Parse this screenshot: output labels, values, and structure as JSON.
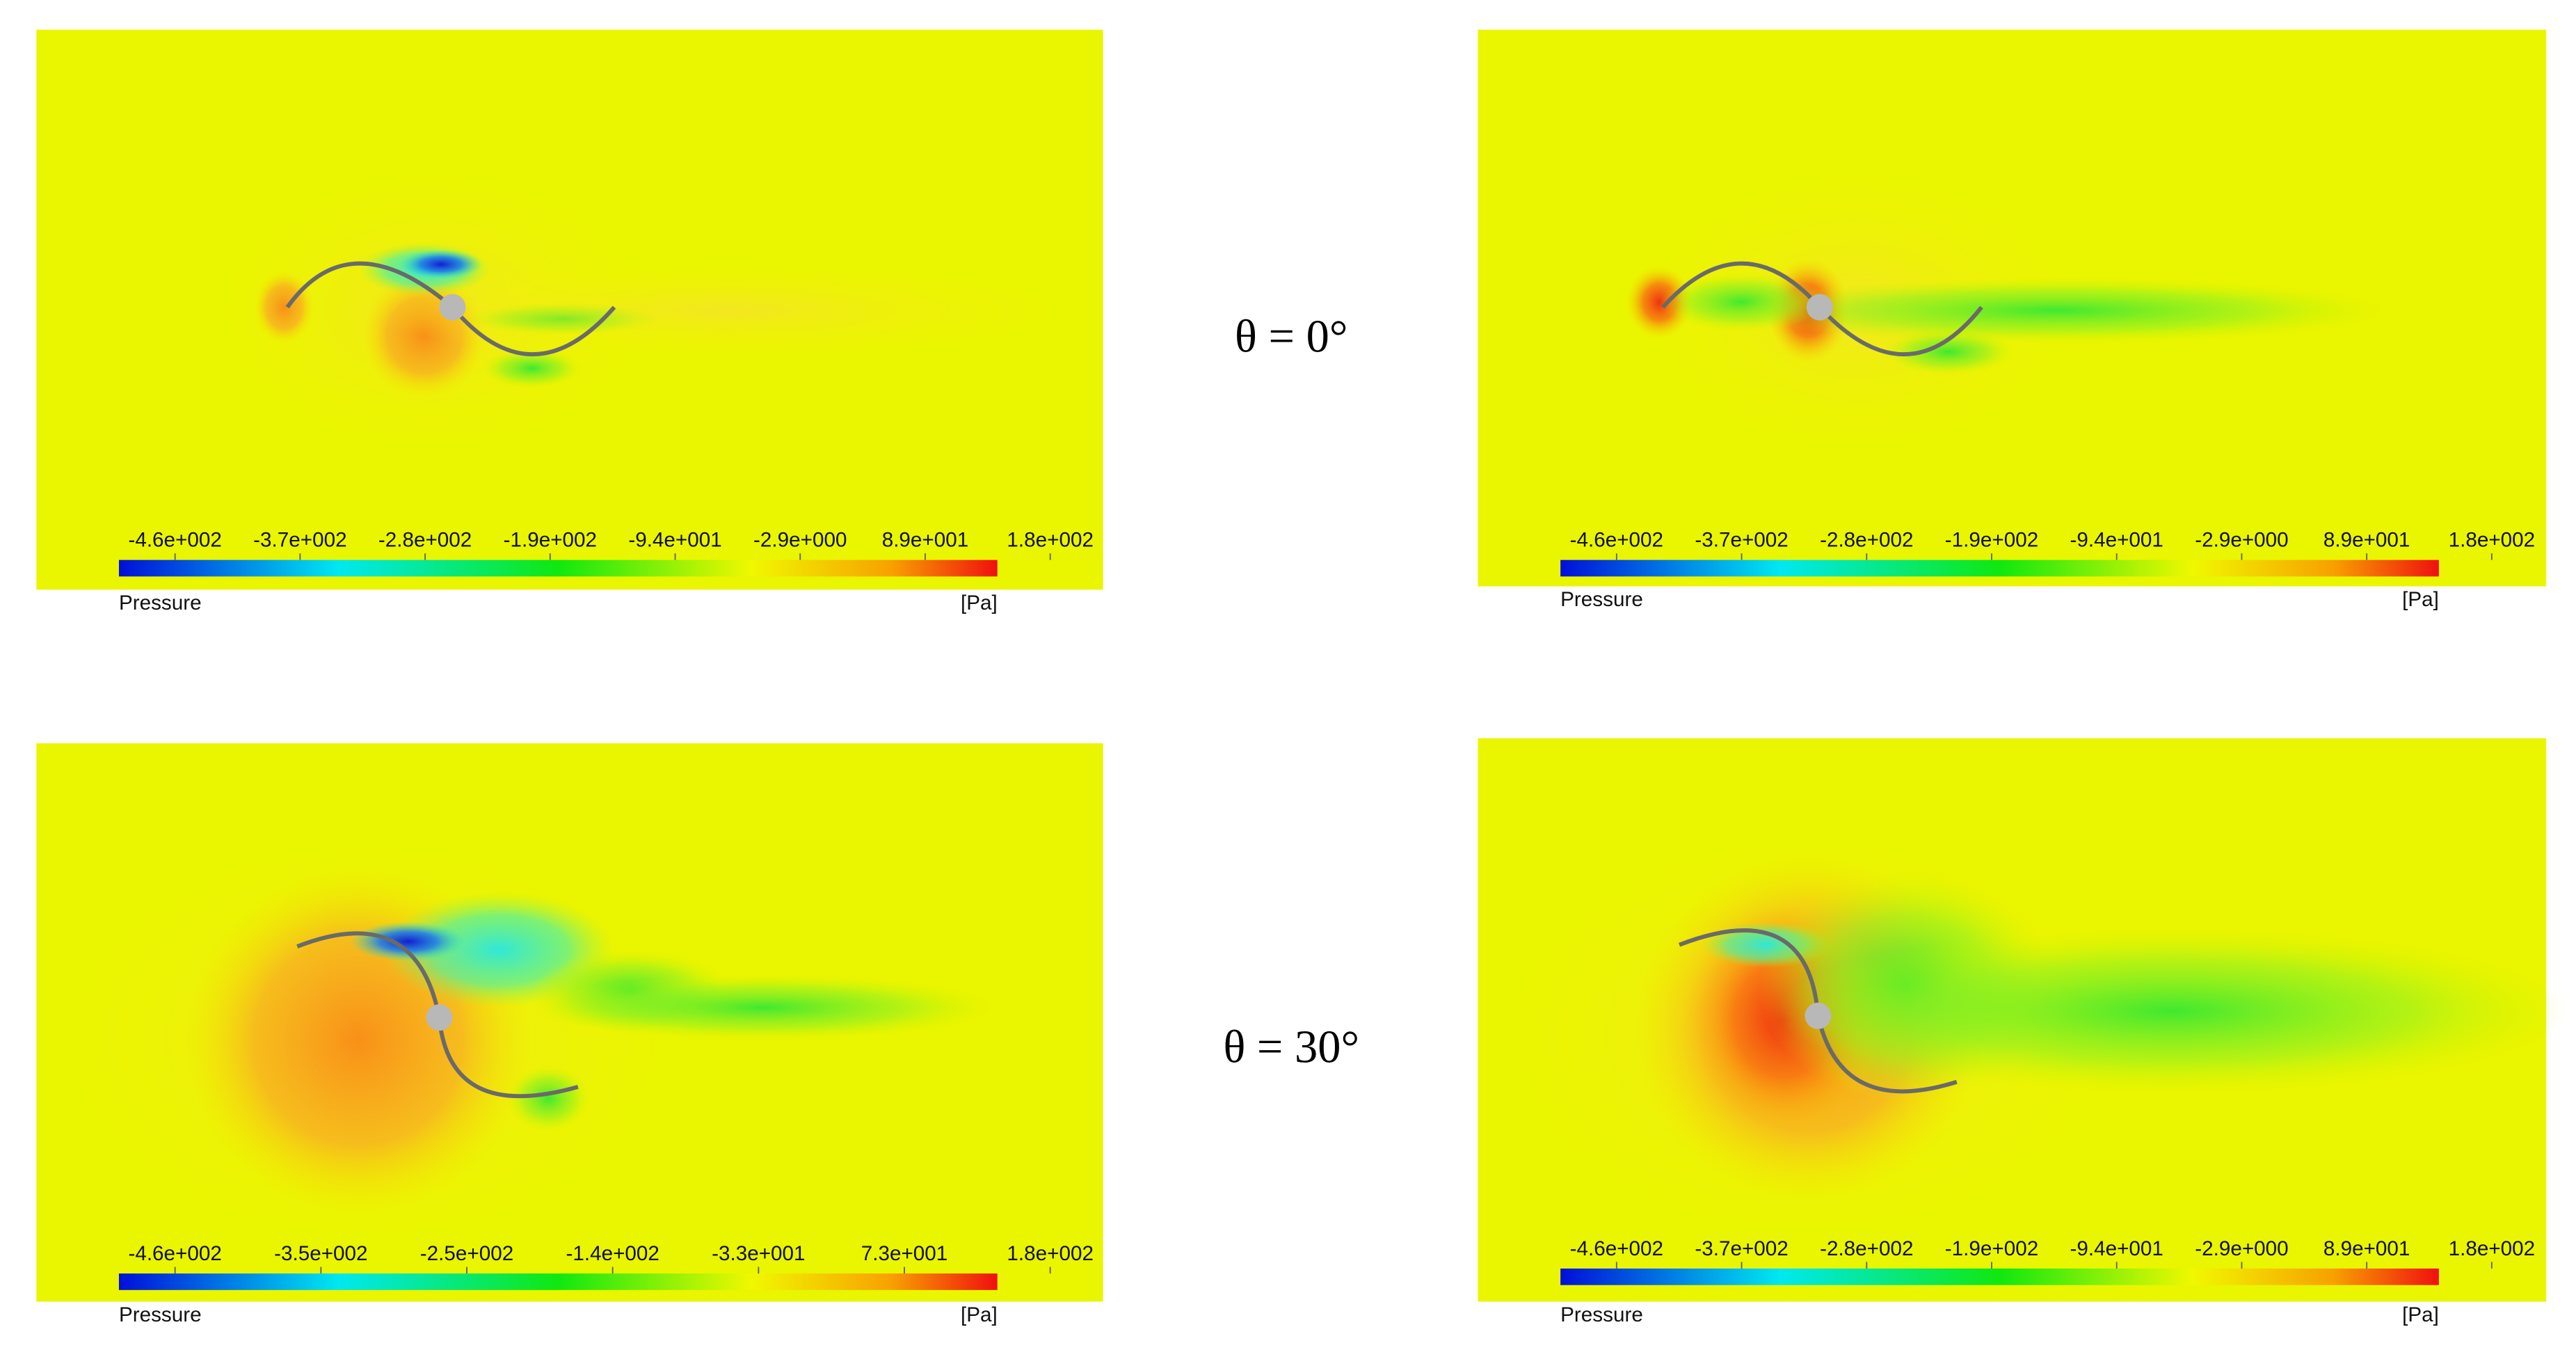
{
  "panels": [
    {
      "ticks": [
        "-4.6e+002",
        "-3.7e+002",
        "-2.8e+002",
        "-1.9e+002",
        "-9.4e+001",
        "-2.9e+000",
        "8.9e+001",
        "1.8e+002"
      ],
      "legend_title": "Pressure",
      "unit": "[Pa]"
    },
    {
      "ticks": [
        "-4.6e+002",
        "-3.7e+002",
        "-2.8e+002",
        "-1.9e+002",
        "-9.4e+001",
        "-2.9e+000",
        "8.9e+001",
        "1.8e+002"
      ],
      "legend_title": "Pressure",
      "unit": "[Pa]"
    },
    {
      "ticks": [
        "-4.6e+002",
        "-3.5e+002",
        "-2.5e+002",
        "-1.4e+002",
        "-3.3e+001",
        "7.3e+001",
        "1.8e+002"
      ],
      "legend_title": "Pressure",
      "unit": "[Pa]"
    },
    {
      "ticks": [
        "-4.6e+002",
        "-3.7e+002",
        "-2.8e+002",
        "-1.9e+002",
        "-9.4e+001",
        "-2.9e+000",
        "8.9e+001",
        "1.8e+002"
      ],
      "legend_title": "Pressure",
      "unit": "[Pa]"
    }
  ],
  "labels": [
    "θ = 0°",
    "θ = 30°"
  ]
}
